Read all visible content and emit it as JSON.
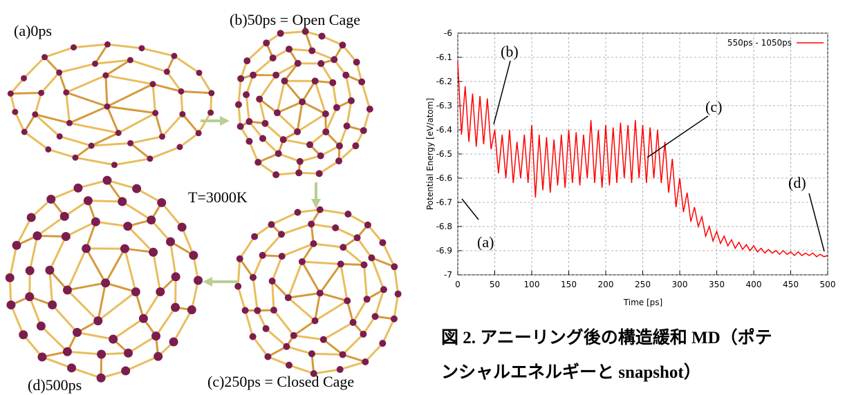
{
  "panel_labels": {
    "a": "(a)0ps",
    "b": "(b)50ps = Open Cage",
    "temperature": "T=3000K",
    "c": "(c)250ps = Closed Cage",
    "d": "(d)500ps"
  },
  "caption": [
    "図 2. アニーリング後の構造緩和 MD（ポテ",
    "ンシャルエネルギーと snapshot）"
  ],
  "chart_data": {
    "type": "line",
    "xlabel": "Time [ps]",
    "ylabel": "Potential Energy [eV/atom]",
    "xlim": [
      0,
      500
    ],
    "ylim": [
      -7,
      -6
    ],
    "xticks": [
      0,
      50,
      100,
      150,
      200,
      250,
      300,
      350,
      400,
      450,
      500
    ],
    "yticks": [
      -6,
      -6.1,
      -6.2,
      -6.3,
      -6.4,
      -6.5,
      -6.6,
      -6.7,
      -6.8,
      -6.9,
      -7
    ],
    "grid": true,
    "legend": "upper right",
    "annotations": [
      "(a)",
      "(b)",
      "(c)",
      "(d)"
    ],
    "x": [
      0,
      5,
      10,
      15,
      20,
      25,
      30,
      35,
      40,
      45,
      50,
      55,
      60,
      65,
      70,
      75,
      80,
      85,
      90,
      95,
      100,
      105,
      110,
      115,
      120,
      125,
      130,
      135,
      140,
      145,
      150,
      155,
      160,
      165,
      170,
      175,
      180,
      185,
      190,
      195,
      200,
      205,
      210,
      215,
      220,
      225,
      230,
      235,
      240,
      245,
      250,
      255,
      260,
      265,
      270,
      275,
      280,
      285,
      290,
      295,
      300,
      305,
      310,
      315,
      320,
      325,
      330,
      335,
      340,
      345,
      350,
      355,
      360,
      365,
      370,
      375,
      380,
      385,
      390,
      395,
      400,
      405,
      410,
      415,
      420,
      425,
      430,
      435,
      440,
      445,
      450,
      455,
      460,
      465,
      470,
      475,
      480,
      485,
      490,
      495,
      500
    ],
    "series": [
      {
        "name": "550ps - 1050ps",
        "color": "#ff0000",
        "values": [
          -6.12,
          -6.42,
          -6.22,
          -6.45,
          -6.25,
          -6.47,
          -6.26,
          -6.46,
          -6.27,
          -6.48,
          -6.4,
          -6.58,
          -6.42,
          -6.6,
          -6.4,
          -6.62,
          -6.45,
          -6.6,
          -6.42,
          -6.62,
          -6.38,
          -6.68,
          -6.42,
          -6.65,
          -6.43,
          -6.66,
          -6.44,
          -6.63,
          -6.42,
          -6.64,
          -6.4,
          -6.62,
          -6.41,
          -6.63,
          -6.42,
          -6.6,
          -6.36,
          -6.62,
          -6.4,
          -6.64,
          -6.38,
          -6.63,
          -6.39,
          -6.62,
          -6.37,
          -6.6,
          -6.38,
          -6.62,
          -6.36,
          -6.6,
          -6.38,
          -6.62,
          -6.39,
          -6.6,
          -6.4,
          -6.62,
          -6.45,
          -6.66,
          -6.52,
          -6.72,
          -6.6,
          -6.74,
          -6.66,
          -6.78,
          -6.72,
          -6.8,
          -6.76,
          -6.84,
          -6.8,
          -6.86,
          -6.82,
          -6.87,
          -6.84,
          -6.88,
          -6.855,
          -6.89,
          -6.865,
          -6.895,
          -6.875,
          -6.9,
          -6.88,
          -6.905,
          -6.89,
          -6.91,
          -6.895,
          -6.91,
          -6.9,
          -6.915,
          -6.9,
          -6.915,
          -6.905,
          -6.92,
          -6.905,
          -6.92,
          -6.91,
          -6.92,
          -6.91,
          -6.925,
          -6.915,
          -6.925,
          -6.92
        ]
      }
    ]
  }
}
